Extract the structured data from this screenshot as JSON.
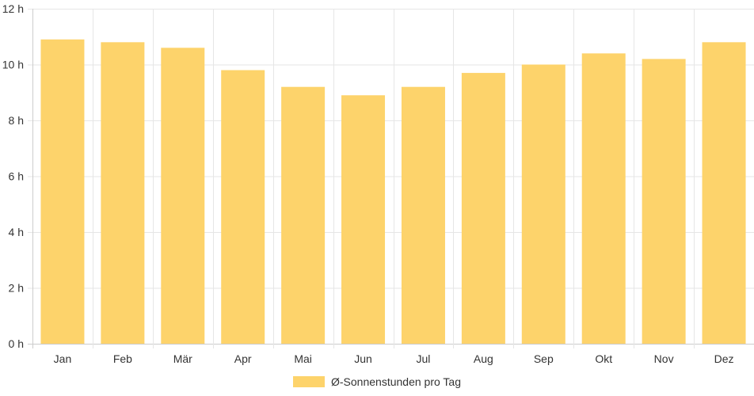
{
  "chart_data": {
    "type": "bar",
    "title": "",
    "xlabel": "",
    "ylabel": "",
    "categories": [
      "Jan",
      "Feb",
      "Mär",
      "Apr",
      "Mai",
      "Jun",
      "Jul",
      "Aug",
      "Sep",
      "Okt",
      "Nov",
      "Dez"
    ],
    "series": [
      {
        "name": "Ø-Sonnenstunden pro Tag",
        "color": "#fdd36b",
        "values": [
          10.9,
          10.8,
          10.6,
          9.8,
          9.2,
          8.9,
          9.2,
          9.7,
          10.0,
          10.4,
          10.2,
          10.8
        ]
      }
    ],
    "ylim": [
      0,
      12
    ],
    "y_ticks": [
      0,
      2,
      4,
      6,
      8,
      10,
      12
    ],
    "y_tick_labels": [
      "0 h",
      "2 h",
      "4 h",
      "6 h",
      "8 h",
      "10 h",
      "12 h"
    ],
    "grid": true,
    "legend_position": "bottom-center"
  }
}
